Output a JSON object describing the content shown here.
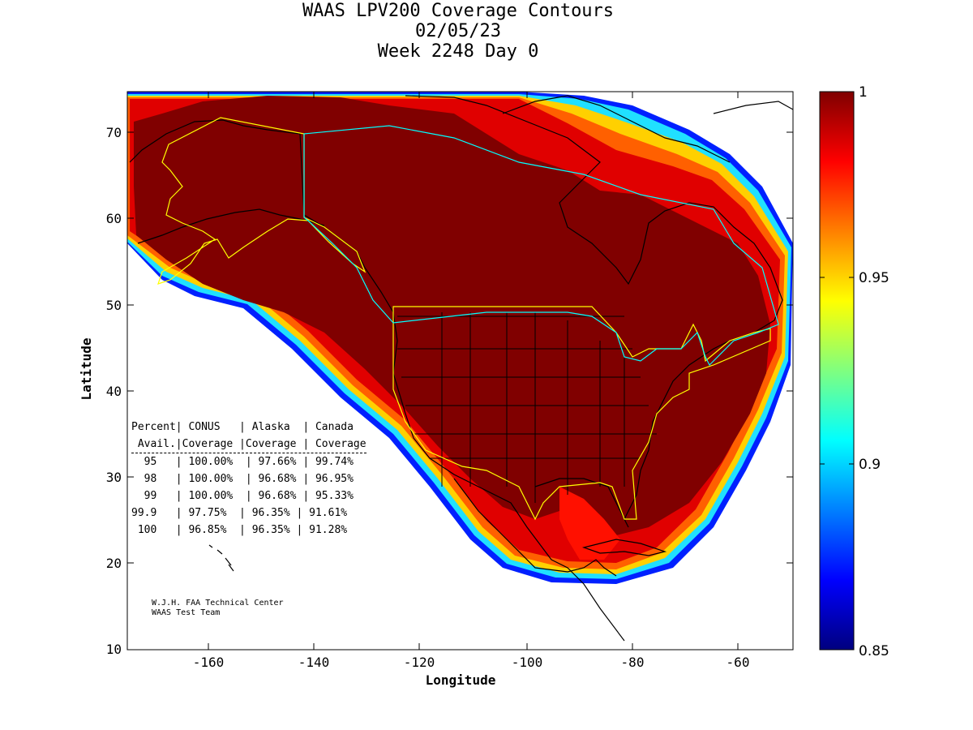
{
  "title": {
    "line1": "WAAS LPV200 Coverage Contours",
    "line2": "02/05/23",
    "line3": "Week 2248 Day 0"
  },
  "axes": {
    "xlabel": "Longitude",
    "ylabel": "Latitude",
    "x_ticks": [
      "-160",
      "-140",
      "-120",
      "-100",
      "-80",
      "-60"
    ],
    "y_ticks": [
      "70",
      "60",
      "50",
      "40",
      "30",
      "20",
      "10"
    ],
    "xlim": [
      -175,
      -50
    ],
    "ylim": [
      10,
      75
    ]
  },
  "colorbar": {
    "range": [
      0.85,
      1
    ],
    "ticks": [
      "1",
      "0.95",
      "0.9",
      "0.85"
    ],
    "colormap": "jet"
  },
  "stats_table": {
    "header1": "Percent| CONUS   | Alaska  | Canada",
    "header2": " Avail.|Coverage |Coverage | Coverage",
    "rows": [
      "  95   | 100.00%  | 97.66% | 99.74%",
      "  98   | 100.00%  | 96.68% | 96.95%",
      "  99   | 100.00%  | 96.68% | 95.33%",
      "99.9   | 97.75%  | 96.35% | 91.61%",
      " 100   | 96.85%  | 96.35% | 91.28%"
    ]
  },
  "credit": {
    "line1": "W.J.H. FAA Technical Center",
    "line2": "WAAS Test Team"
  },
  "colors": {
    "coverage_full": "#800000",
    "service_boundary": "#ffff00",
    "border_line": "#00ffff",
    "coastline": "#000000"
  }
}
